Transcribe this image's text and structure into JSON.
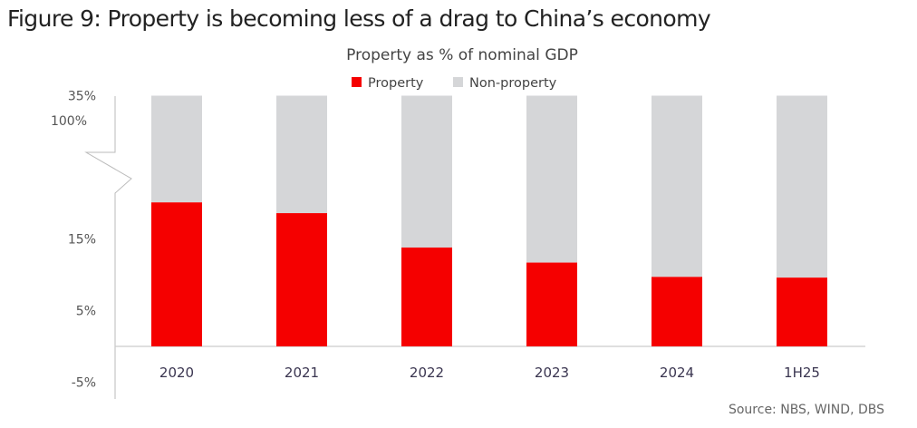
{
  "figure_title": "Figure 9: Property is becoming less of a drag to China’s economy",
  "chart_data": {
    "type": "bar",
    "stacked": true,
    "title": "Property as % of nominal GDP",
    "categories": [
      "2020",
      "2021",
      "2022",
      "2023",
      "2024",
      "1H25"
    ],
    "series": [
      {
        "name": "Property",
        "color": "#f50000",
        "values": [
          20.1,
          18.6,
          13.8,
          11.7,
          9.7,
          9.6
        ]
      },
      {
        "name": "Non-property",
        "color": "#d5d6d8",
        "values": [
          79.9,
          81.4,
          86.2,
          88.3,
          90.3,
          90.4
        ]
      }
    ],
    "y_ticks": [
      {
        "label": "35%",
        "value": 35
      },
      {
        "label": "15%",
        "value": 15
      },
      {
        "label": "5%",
        "value": 5
      },
      {
        "label": "-5%",
        "value": -5
      }
    ],
    "axis_break_label": "100%",
    "axis_break": true,
    "ylim": [
      -5,
      35
    ],
    "xlabel": "",
    "ylabel": "",
    "legend_position": "top-center",
    "grid": false,
    "source": "Source: NBS, WIND, DBS"
  }
}
